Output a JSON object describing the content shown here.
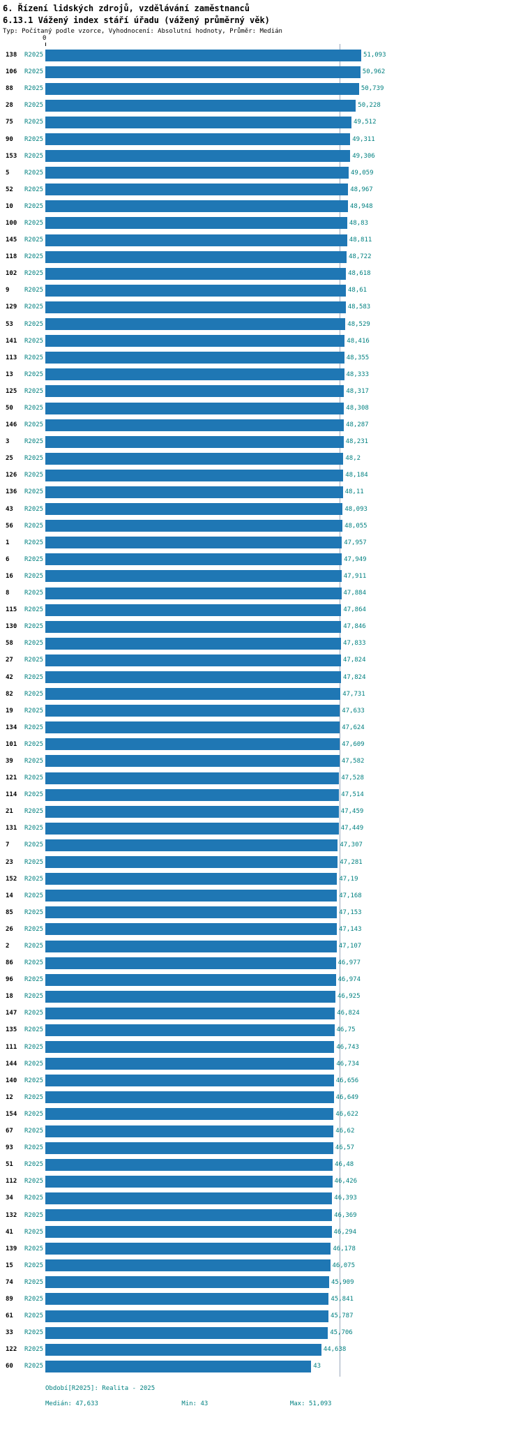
{
  "colors": {
    "bar_blue": "#1f77b4",
    "label_teal": "#008080",
    "median_line": "#9aa7bb",
    "text_black": "#000000"
  },
  "footer": {
    "period": "Období[R2025]: Realita - 2025",
    "median_label": "Medián: 47,633",
    "min_label": "Min: 43",
    "max_label": "Max: 51,093"
  },
  "chart_data": {
    "type": "bar",
    "orientation": "horizontal",
    "title": "6. Řízení lidských zdrojů, vzdělávání zaměstnanců",
    "subtitle": "6.13.1 Vážený index stáří úřadu (vážený průměrný věk)",
    "meta": "Typ: Počítaný podle vzorce, Vyhodnocení: Absolutní hodnoty, Průměr: Medián",
    "period_label": "R2025",
    "x_axis": {
      "zero_label": "0",
      "min": 0,
      "max": 51.093
    },
    "median": 47.633,
    "stats": {
      "median": 47.633,
      "min": 43,
      "max": 51.093
    },
    "grid": false,
    "legend_position": "bottom",
    "rows": [
      {
        "id": "138",
        "value": 51.093
      },
      {
        "id": "106",
        "value": 50.962
      },
      {
        "id": "88",
        "value": 50.739
      },
      {
        "id": "28",
        "value": 50.228
      },
      {
        "id": "75",
        "value": 49.512
      },
      {
        "id": "90",
        "value": 49.311
      },
      {
        "id": "153",
        "value": 49.306
      },
      {
        "id": "5",
        "value": 49.059
      },
      {
        "id": "52",
        "value": 48.967
      },
      {
        "id": "10",
        "value": 48.948
      },
      {
        "id": "100",
        "value": 48.83
      },
      {
        "id": "145",
        "value": 48.811
      },
      {
        "id": "118",
        "value": 48.722
      },
      {
        "id": "102",
        "value": 48.618
      },
      {
        "id": "9",
        "value": 48.61
      },
      {
        "id": "129",
        "value": 48.583
      },
      {
        "id": "53",
        "value": 48.529
      },
      {
        "id": "141",
        "value": 48.416
      },
      {
        "id": "113",
        "value": 48.355
      },
      {
        "id": "13",
        "value": 48.333
      },
      {
        "id": "125",
        "value": 48.317
      },
      {
        "id": "50",
        "value": 48.308
      },
      {
        "id": "146",
        "value": 48.287
      },
      {
        "id": "3",
        "value": 48.231
      },
      {
        "id": "25",
        "value": 48.2
      },
      {
        "id": "126",
        "value": 48.184
      },
      {
        "id": "136",
        "value": 48.11
      },
      {
        "id": "43",
        "value": 48.093
      },
      {
        "id": "56",
        "value": 48.055
      },
      {
        "id": "1",
        "value": 47.957
      },
      {
        "id": "6",
        "value": 47.949
      },
      {
        "id": "16",
        "value": 47.911
      },
      {
        "id": "8",
        "value": 47.884
      },
      {
        "id": "115",
        "value": 47.864
      },
      {
        "id": "130",
        "value": 47.846
      },
      {
        "id": "58",
        "value": 47.833
      },
      {
        "id": "27",
        "value": 47.824
      },
      {
        "id": "42",
        "value": 47.824
      },
      {
        "id": "82",
        "value": 47.731
      },
      {
        "id": "19",
        "value": 47.633
      },
      {
        "id": "134",
        "value": 47.624
      },
      {
        "id": "101",
        "value": 47.609
      },
      {
        "id": "39",
        "value": 47.582
      },
      {
        "id": "121",
        "value": 47.528
      },
      {
        "id": "114",
        "value": 47.514
      },
      {
        "id": "21",
        "value": 47.459
      },
      {
        "id": "131",
        "value": 47.449
      },
      {
        "id": "7",
        "value": 47.307
      },
      {
        "id": "23",
        "value": 47.281
      },
      {
        "id": "152",
        "value": 47.19
      },
      {
        "id": "14",
        "value": 47.168
      },
      {
        "id": "85",
        "value": 47.153
      },
      {
        "id": "26",
        "value": 47.143
      },
      {
        "id": "2",
        "value": 47.107
      },
      {
        "id": "86",
        "value": 46.977
      },
      {
        "id": "96",
        "value": 46.974
      },
      {
        "id": "18",
        "value": 46.925
      },
      {
        "id": "147",
        "value": 46.824
      },
      {
        "id": "135",
        "value": 46.75
      },
      {
        "id": "111",
        "value": 46.743
      },
      {
        "id": "144",
        "value": 46.734
      },
      {
        "id": "140",
        "value": 46.656
      },
      {
        "id": "12",
        "value": 46.649
      },
      {
        "id": "154",
        "value": 46.622
      },
      {
        "id": "67",
        "value": 46.62
      },
      {
        "id": "93",
        "value": 46.57
      },
      {
        "id": "51",
        "value": 46.48
      },
      {
        "id": "112",
        "value": 46.426
      },
      {
        "id": "34",
        "value": 46.393
      },
      {
        "id": "132",
        "value": 46.369
      },
      {
        "id": "41",
        "value": 46.294
      },
      {
        "id": "139",
        "value": 46.178
      },
      {
        "id": "15",
        "value": 46.075
      },
      {
        "id": "74",
        "value": 45.909
      },
      {
        "id": "89",
        "value": 45.841
      },
      {
        "id": "61",
        "value": 45.787
      },
      {
        "id": "33",
        "value": 45.706
      },
      {
        "id": "122",
        "value": 44.638
      },
      {
        "id": "60",
        "value": 43
      }
    ]
  }
}
